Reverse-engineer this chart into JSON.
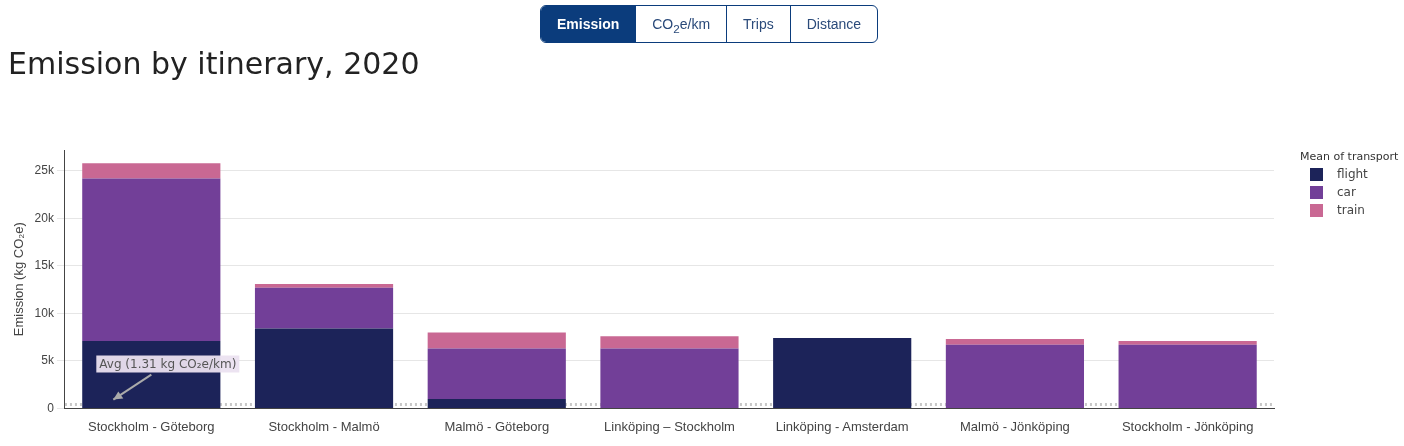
{
  "chart_data": {
    "type": "bar",
    "title": "Emission by itinerary, 2020",
    "ylabel": "Emission (kg CO₂e)",
    "legend_title": "Mean of transport",
    "categories": [
      "Stockholm - Göteborg",
      "Stockholm - Malmö",
      "Malmö - Göteborg",
      "Linköping – Stockholm",
      "Linköping - Amsterdam",
      "Malmö - Jönköping",
      "Stockholm - Jönköping"
    ],
    "series": [
      {
        "name": "flight",
        "color": "#1c2359",
        "values": [
          7100,
          8400,
          1000,
          0,
          7400,
          0,
          0
        ]
      },
      {
        "name": "car",
        "color": "#723f98",
        "values": [
          17100,
          4300,
          5300,
          6300,
          0,
          6700,
          6700
        ]
      },
      {
        "name": "train",
        "color": "#c96893",
        "values": [
          1600,
          400,
          1700,
          1300,
          0,
          600,
          400
        ]
      }
    ],
    "stacked": true,
    "ylim": [
      0,
      27200
    ],
    "yticks": [
      0,
      {
        "value": 5000,
        "label": "5k"
      },
      {
        "value": 10000,
        "label": "10k"
      },
      {
        "value": 15000,
        "label": "15k"
      },
      {
        "value": 20000,
        "label": "20k"
      },
      {
        "value": 25000,
        "label": "25k"
      }
    ],
    "grid": "y",
    "legend": "top right",
    "ref_lines": [
      {
        "axis": "y",
        "value": 400,
        "label": "Avg (1.31 kg CO₂e/km)",
        "color": "#c8c8c8",
        "line_style": "dotted"
      }
    ],
    "annotations": [
      "Emission",
      "CO$_{2}$e/km",
      "Trips",
      "Distance"
    ]
  }
}
